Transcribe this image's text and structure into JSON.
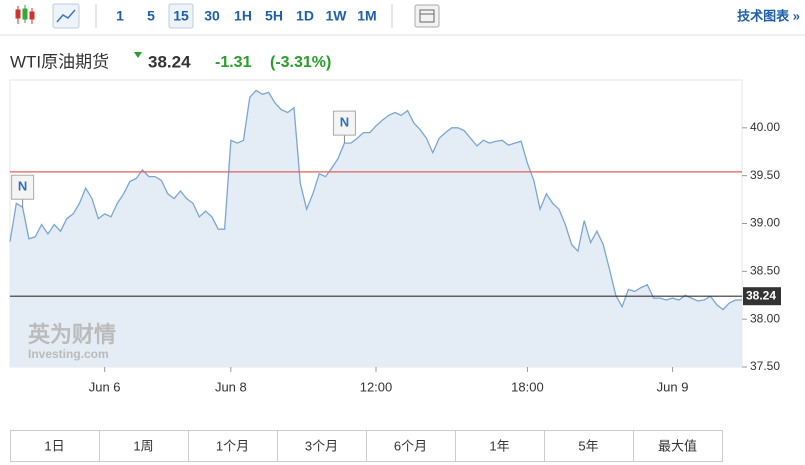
{
  "toolbar": {
    "intervals": [
      "1",
      "5",
      "15",
      "30",
      "1H",
      "5H",
      "1D",
      "1W",
      "1M"
    ],
    "selected": "15",
    "link": "技术图表 »"
  },
  "header": {
    "name": "WTI原油期货",
    "price": "38.24",
    "change": "-1.31",
    "change_pct": "(-3.31%)"
  },
  "chart_data": {
    "type": "line",
    "color": "#7ba6d1",
    "fill": "#e4edf5",
    "values": [
      38.81,
      39.21,
      39.17,
      38.84,
      38.86,
      38.99,
      38.89,
      38.99,
      38.92,
      39.05,
      39.1,
      39.21,
      39.37,
      39.26,
      39.05,
      39.1,
      39.07,
      39.21,
      39.31,
      39.44,
      39.47,
      39.56,
      39.49,
      39.49,
      39.45,
      39.31,
      39.26,
      39.34,
      39.26,
      39.21,
      39.07,
      39.13,
      39.07,
      38.94,
      38.94,
      39.87,
      39.84,
      39.87,
      40.32,
      40.39,
      40.35,
      40.37,
      40.26,
      40.19,
      40.16,
      40.21,
      39.42,
      39.15,
      39.31,
      39.52,
      39.49,
      39.58,
      39.68,
      39.84,
      39.84,
      39.89,
      39.95,
      39.95,
      40.02,
      40.08,
      40.13,
      40.16,
      40.13,
      40.18,
      40.05,
      39.98,
      39.89,
      39.74,
      39.89,
      39.95,
      40.0,
      40.0,
      39.97,
      39.89,
      39.81,
      39.87,
      39.84,
      39.86,
      39.87,
      39.82,
      39.84,
      39.86,
      39.63,
      39.45,
      39.15,
      39.31,
      39.21,
      39.15,
      38.99,
      38.78,
      38.71,
      39.03,
      38.8,
      38.92,
      38.78,
      38.52,
      38.25,
      38.13,
      38.31,
      38.29,
      38.33,
      38.36,
      38.22,
      38.22,
      38.2,
      38.22,
      38.2,
      38.25,
      38.22,
      38.19,
      38.2,
      38.24,
      38.15,
      38.1,
      38.17,
      38.2,
      38.2
    ],
    "xlim": [
      0,
      116
    ],
    "xticks": [
      {
        "value": 15,
        "label": "Jun 6"
      },
      {
        "value": 35,
        "label": "Jun 8"
      },
      {
        "value": 58,
        "label": "12:00"
      },
      {
        "value": 82,
        "label": "18:00"
      },
      {
        "value": 105,
        "label": "Jun 9"
      }
    ],
    "ylim": [
      37.5,
      40.5
    ],
    "yticks": [
      {
        "value": 37.5,
        "label": "37.50"
      },
      {
        "value": 38,
        "label": "38.00"
      },
      {
        "value": 38.5,
        "label": "38.50"
      },
      {
        "value": 39,
        "label": "39.00"
      },
      {
        "value": 39.5,
        "label": "39.50"
      },
      {
        "value": 40,
        "label": "40.00"
      }
    ],
    "hlines": [
      {
        "value": 39.54,
        "color": "#e0615f"
      },
      {
        "value": 38.24,
        "color": "#333333"
      }
    ],
    "annotations": [
      {
        "x": 2,
        "label": "N"
      },
      {
        "x": 53,
        "label": "N"
      }
    ],
    "watermark": [
      "英为财情",
      "Investing.com"
    ]
  },
  "ranges": [
    "1日",
    "1周",
    "1个月",
    "3个月",
    "6个月",
    "1年",
    "5年",
    "最大值"
  ]
}
